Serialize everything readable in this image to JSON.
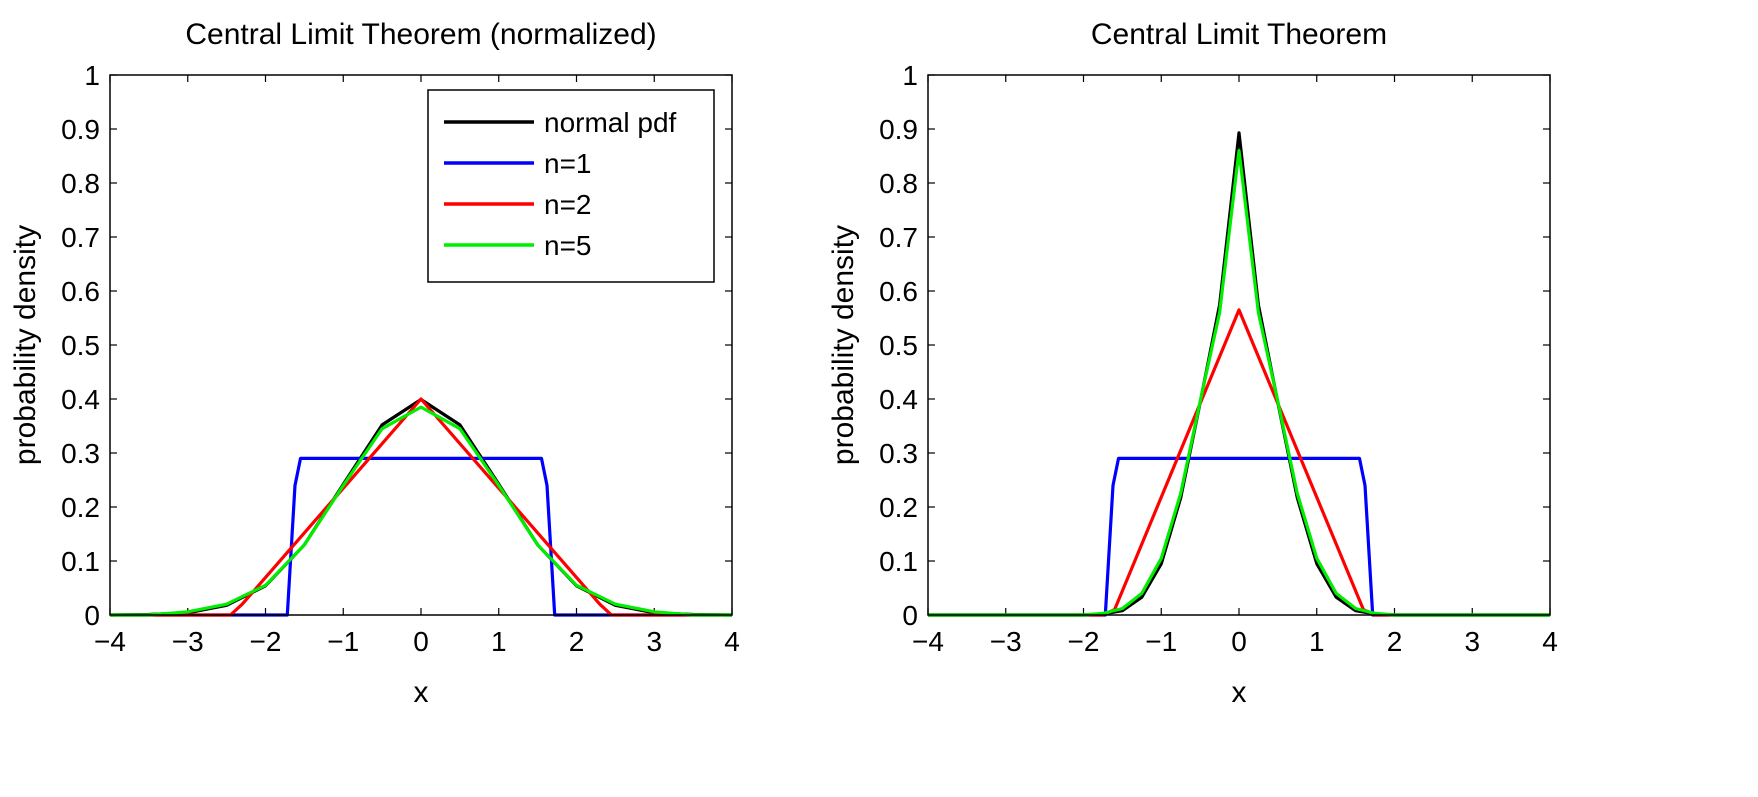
{
  "chart_data": [
    {
      "type": "line",
      "title": "Central Limit Theorem (normalized)",
      "xlabel": "x",
      "ylabel": "probability density",
      "xlim": [
        -4,
        4
      ],
      "ylim": [
        0,
        1
      ],
      "xticks": [
        "−4",
        "−3",
        "−2",
        "−1",
        "0",
        "1",
        "2",
        "3",
        "4"
      ],
      "yticks": [
        "0",
        "0.1",
        "0.2",
        "0.3",
        "0.4",
        "0.5",
        "0.6",
        "0.7",
        "0.8",
        "0.9",
        "1"
      ],
      "grid": false,
      "legend_position": "top-right",
      "series": [
        {
          "name": "normal pdf",
          "color": "#000000",
          "x": [
            -4,
            -3.5,
            -3,
            -2.5,
            -2,
            -1.5,
            -1,
            -0.5,
            0,
            0.5,
            1,
            1.5,
            2,
            2.5,
            3,
            3.5,
            4
          ],
          "y": [
            0.0,
            0.001,
            0.004,
            0.018,
            0.054,
            0.13,
            0.242,
            0.352,
            0.399,
            0.352,
            0.242,
            0.13,
            0.054,
            0.018,
            0.004,
            0.001,
            0.0
          ]
        },
        {
          "name": "n=1",
          "color": "#0000ff",
          "x": [
            -4,
            -1.72,
            -1.62,
            -1.55,
            1.55,
            1.62,
            1.72,
            4
          ],
          "y": [
            0,
            0,
            0.24,
            0.29,
            0.29,
            0.24,
            0,
            0
          ]
        },
        {
          "name": "n=2",
          "color": "#ff0000",
          "x": [
            -4,
            -2.45,
            -2.3,
            0,
            2.3,
            2.45,
            4
          ],
          "y": [
            0,
            0,
            0.02,
            0.4,
            0.02,
            0,
            0
          ]
        },
        {
          "name": "n=5",
          "color": "#00ee00",
          "x": [
            -4,
            -3.5,
            -3,
            -2.5,
            -2,
            -1.5,
            -1,
            -0.5,
            0,
            0.5,
            1,
            1.5,
            2,
            2.5,
            3,
            3.5,
            4
          ],
          "y": [
            0.0,
            0.0,
            0.006,
            0.02,
            0.055,
            0.13,
            0.24,
            0.345,
            0.385,
            0.345,
            0.24,
            0.13,
            0.055,
            0.02,
            0.006,
            0.0,
            0.0
          ]
        }
      ]
    },
    {
      "type": "line",
      "title": "Central Limit Theorem",
      "xlabel": "x",
      "ylabel": "probability density",
      "xlim": [
        -4,
        4
      ],
      "ylim": [
        0,
        1
      ],
      "xticks": [
        "−4",
        "−3",
        "−2",
        "−1",
        "0",
        "1",
        "2",
        "3",
        "4"
      ],
      "yticks": [
        "0",
        "0.1",
        "0.2",
        "0.3",
        "0.4",
        "0.5",
        "0.6",
        "0.7",
        "0.8",
        "0.9",
        "1"
      ],
      "grid": false,
      "series": [
        {
          "name": "normal pdf",
          "color": "#000000",
          "x": [
            -4,
            -2,
            -1.75,
            -1.5,
            -1.25,
            -1,
            -0.75,
            -0.5,
            -0.25,
            0,
            0.25,
            0.5,
            0.75,
            1,
            1.25,
            1.5,
            1.75,
            2,
            4
          ],
          "y": [
            0,
            0,
            0.002,
            0.008,
            0.033,
            0.095,
            0.217,
            0.393,
            0.574,
            0.893,
            0.574,
            0.393,
            0.217,
            0.095,
            0.033,
            0.008,
            0.002,
            0,
            0
          ]
        },
        {
          "name": "n=1",
          "color": "#0000ff",
          "x": [
            -4,
            -1.72,
            -1.62,
            -1.55,
            1.55,
            1.62,
            1.72,
            4
          ],
          "y": [
            0,
            0,
            0.24,
            0.29,
            0.29,
            0.24,
            0,
            0
          ]
        },
        {
          "name": "n=2",
          "color": "#ff0000",
          "x": [
            -4,
            -1.75,
            -1.6,
            0,
            1.6,
            1.75,
            4
          ],
          "y": [
            0,
            0,
            0.01,
            0.565,
            0.01,
            0,
            0
          ]
        },
        {
          "name": "n=5",
          "color": "#00ee00",
          "x": [
            -4,
            -2,
            -1.75,
            -1.5,
            -1.25,
            -1,
            -0.75,
            -0.5,
            -0.25,
            0,
            0.25,
            0.5,
            0.75,
            1,
            1.25,
            1.5,
            1.75,
            2,
            4
          ],
          "y": [
            0,
            0,
            0.003,
            0.012,
            0.04,
            0.105,
            0.225,
            0.395,
            0.56,
            0.86,
            0.56,
            0.395,
            0.225,
            0.105,
            0.04,
            0.012,
            0.003,
            0,
            0
          ]
        }
      ]
    }
  ]
}
